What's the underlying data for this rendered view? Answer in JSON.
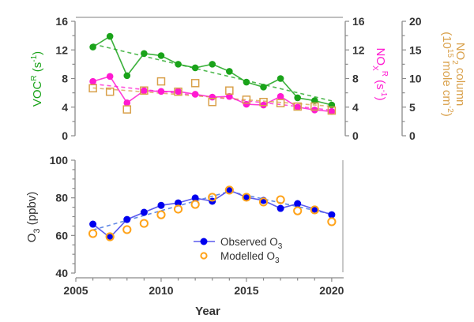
{
  "chart_data": [
    {
      "type": "line",
      "panel": "top",
      "x": [
        2006,
        2007,
        2008,
        2009,
        2010,
        2011,
        2012,
        2013,
        2014,
        2015,
        2016,
        2017,
        2018,
        2019,
        2020
      ],
      "xlim": [
        2005,
        2020.7
      ],
      "series": [
        {
          "name": "VOC^R",
          "axis": "left",
          "color": "#1aa31a",
          "marker": "filled-circle",
          "line": "solid",
          "trend": "dashed",
          "values": [
            12.4,
            13.9,
            8.4,
            11.5,
            11.2,
            10.0,
            9.5,
            10.0,
            9.0,
            7.5,
            6.8,
            8.0,
            5.3,
            4.9,
            4.3
          ]
        },
        {
          "name": "NOx^R",
          "axis": "right",
          "color": "#ff1ad1",
          "marker": "filled-circle",
          "line": "solid",
          "trend": "dashed",
          "values": [
            7.6,
            8.3,
            4.6,
            6.3,
            6.2,
            6.2,
            5.8,
            5.4,
            5.5,
            4.4,
            4.3,
            5.5,
            4.0,
            3.6,
            3.4
          ]
        },
        {
          "name": "NO2 column",
          "axis": "far-right",
          "color": "#d9a04a",
          "marker": "open-square",
          "line": "none",
          "trend": "dashed",
          "values": [
            8.3,
            7.7,
            4.6,
            7.9,
            9.5,
            7.7,
            9.2,
            5.9,
            7.9,
            6.3,
            5.9,
            5.7,
            5.1,
            5.1,
            4.4
          ]
        }
      ],
      "axes": {
        "left": {
          "label_main": "VOC",
          "label_sup": "R",
          "label_unit": "(s",
          "label_unit_sup": "-1",
          "label_close": ")",
          "ylim": [
            0,
            16
          ],
          "ticks": [
            "0",
            "4",
            "8",
            "12",
            "16"
          ],
          "color": "#1aa31a"
        },
        "right": {
          "label_main": "NO",
          "label_sub": "X",
          "label_sup": "R",
          "label_unit": "(s",
          "label_unit_sup": "-1",
          "label_close": ")",
          "ylim": [
            0,
            16
          ],
          "ticks": [
            "0",
            "4",
            "8",
            "12",
            "16"
          ],
          "color": "#ff1ad1"
        },
        "far_right": {
          "label_line1": "NO",
          "label_line1_sub": "2",
          "label_line1_rest": " column",
          "label_line2": "(10",
          "label_line2_sup": "15",
          "label_line2_mid": " mole cm",
          "label_line2_sup2": "-2",
          "label_line2_close": ")",
          "ylim": [
            0,
            20
          ],
          "ticks": [
            "0",
            "5",
            "10",
            "15",
            "20"
          ],
          "color": "#d9a04a"
        }
      },
      "grid": false
    },
    {
      "type": "line",
      "panel": "bottom",
      "x": [
        2006,
        2007,
        2008,
        2009,
        2010,
        2011,
        2012,
        2013,
        2014,
        2015,
        2016,
        2017,
        2018,
        2019,
        2020
      ],
      "xlim": [
        2005,
        2020.7
      ],
      "xlabel": "Year",
      "xticks": [
        "2005",
        "2010",
        "2015",
        "2020"
      ],
      "ylabel_main": "O",
      "ylabel_sub": "3",
      "ylabel_rest": " (ppbv)",
      "ylim": [
        40,
        100
      ],
      "yticks": [
        "40",
        "60",
        "80",
        "100"
      ],
      "series": [
        {
          "name": "Observed O3",
          "color": "#0000ee",
          "line_color": "#5a5aee",
          "marker": "filled-circle",
          "line": "solid",
          "trend": "dashed",
          "values": [
            66.0,
            58.9,
            68.5,
            72.3,
            76.0,
            77.3,
            79.9,
            78.2,
            84.1,
            80.3,
            78.6,
            74.4,
            76.9,
            74.0,
            71.0
          ]
        },
        {
          "name": "Modelled O3",
          "color": "#ffa31a",
          "marker": "open-circle",
          "line": "none",
          "values": [
            61.0,
            59.3,
            63.1,
            66.4,
            71.0,
            74.0,
            76.5,
            80.3,
            84.1,
            80.3,
            77.8,
            79.0,
            73.1,
            73.6,
            67.3
          ]
        }
      ],
      "legend": {
        "position": "lower-right",
        "items": [
          {
            "text": "Observed O",
            "sub": "3"
          },
          {
            "text": "Modelled O",
            "sub": "3"
          }
        ]
      },
      "grid": false
    }
  ]
}
